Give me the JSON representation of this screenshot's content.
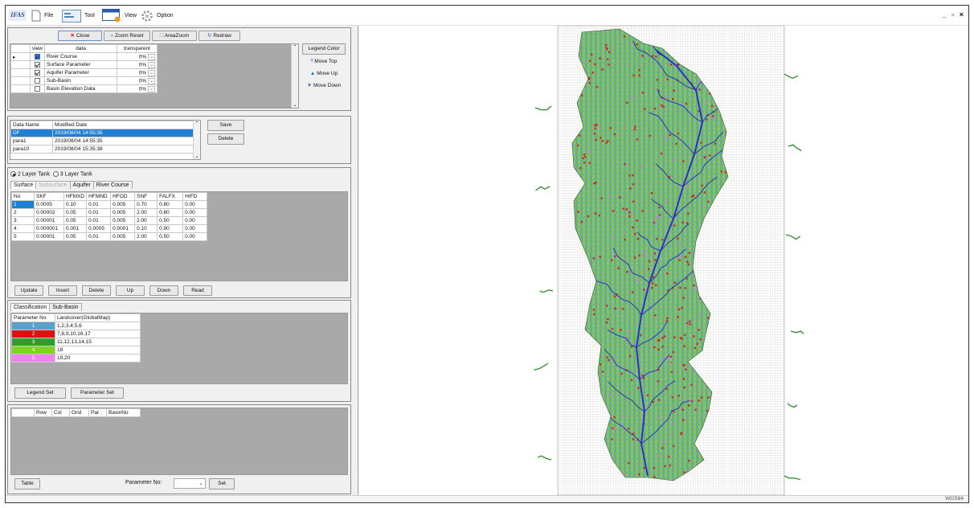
{
  "app": {
    "logo": "IFAS",
    "window_controls": "_ ▫ ×"
  },
  "menu": [
    {
      "label": "File",
      "icon": "file-icon"
    },
    {
      "label": "Tool",
      "icon": "tool-icon"
    },
    {
      "label": "View",
      "icon": "view-icon"
    },
    {
      "label": "Option",
      "icon": "gear-icon"
    }
  ],
  "layer_toolbar": {
    "close": "Close",
    "zoom_reset": "Zoom Reset",
    "area_zoom": "AreaZoom",
    "redraw": "Redraw"
  },
  "layers": {
    "headers": [
      "view",
      "data",
      "transparent"
    ],
    "rows": [
      {
        "name": "River Course",
        "checked": true,
        "transparent": "0%",
        "selected": true
      },
      {
        "name": "Surface Parameter",
        "checked": true,
        "transparent": "0%"
      },
      {
        "name": "Aquifer Parameter",
        "checked": true,
        "transparent": "0%"
      },
      {
        "name": "Sub-Basin",
        "checked": false,
        "transparent": "0%"
      },
      {
        "name": "Basin Elevation Data",
        "checked": false,
        "transparent": "0%"
      }
    ],
    "side_buttons": {
      "legend_color": "Legend Color",
      "move_top": "Move Top",
      "move_up": "Move Up",
      "move_down": "Move Down"
    }
  },
  "datasets": {
    "headers": [
      "Data Name",
      "Modified Date"
    ],
    "rows": [
      {
        "name": "DF",
        "date": "2019/08/04 14:55:35",
        "selected": true
      },
      {
        "name": "para1",
        "date": "2019/08/04 14:55:35"
      },
      {
        "name": "para10",
        "date": "2019/08/04 15:35:38"
      }
    ],
    "save": "Save",
    "delete": "Delete"
  },
  "tank": {
    "option1": "2 Layer Tank",
    "option2": "3 Layer Tank"
  },
  "param_tabs": [
    "Surface",
    "Subsurface",
    "Aquifer",
    "River Course"
  ],
  "surface": {
    "headers": [
      "No",
      "SKF",
      "HFMXD",
      "HFMND",
      "HFOD",
      "SNF",
      "FALFX",
      "HIFD"
    ],
    "rows": [
      [
        "1",
        "0.0005",
        "0.10",
        "0.01",
        "0.005",
        "0.70",
        "0.80",
        "0.00"
      ],
      [
        "2",
        "0.00002",
        "0.05",
        "0.01",
        "0.005",
        "2.00",
        "0.60",
        "0.00"
      ],
      [
        "3",
        "0.00001",
        "0.05",
        "0.01",
        "0.005",
        "2.00",
        "0.50",
        "0.00"
      ],
      [
        "4",
        "0.000001",
        "0.001",
        "0.0005",
        "0.0001",
        "0.10",
        "0.90",
        "0.00"
      ],
      [
        "5",
        "0.00001",
        "0.05",
        "0.01",
        "0.005",
        "2.00",
        "0.50",
        "0.00"
      ]
    ],
    "buttons": [
      "Update",
      "Insert",
      "Delete",
      "Up",
      "Down",
      "Read"
    ]
  },
  "class_tabs": [
    "Classification",
    "Sub-Basin"
  ],
  "classification": {
    "headers": [
      "Parameter No",
      "Landcover(GlobalMap)"
    ],
    "rows": [
      {
        "no": "1",
        "landcover": "1,2,3,4,5,6",
        "color": "#5aa0c8"
      },
      {
        "no": "2",
        "landcover": "7,8,9,10,16,17",
        "color": "#e01010"
      },
      {
        "no": "3",
        "landcover": "11,12,13,14,15",
        "color": "#2aa02a"
      },
      {
        "no": "4",
        "landcover": "18",
        "color": "#7ed321"
      },
      {
        "no": "5",
        "landcover": "19,20",
        "color": "#ee82ee"
      }
    ],
    "legend_set": "Legend Set",
    "parameter_set": "Parameter Set"
  },
  "grid_info": {
    "headers": [
      "Row",
      "Col",
      "Grid",
      "Par.",
      "BasinNo"
    ],
    "table": "Table",
    "param_label": "Parameter No:",
    "set": "Set"
  },
  "map": {
    "colors": {
      "lake": "#6aa2b6",
      "forest": "#6fbe2e",
      "urban": "#cc2a2a",
      "river": "#3030c8",
      "outer_river": "#2e8a2e",
      "grid": "#bbbbbb"
    }
  },
  "status": {
    "crs": "WGS84"
  }
}
